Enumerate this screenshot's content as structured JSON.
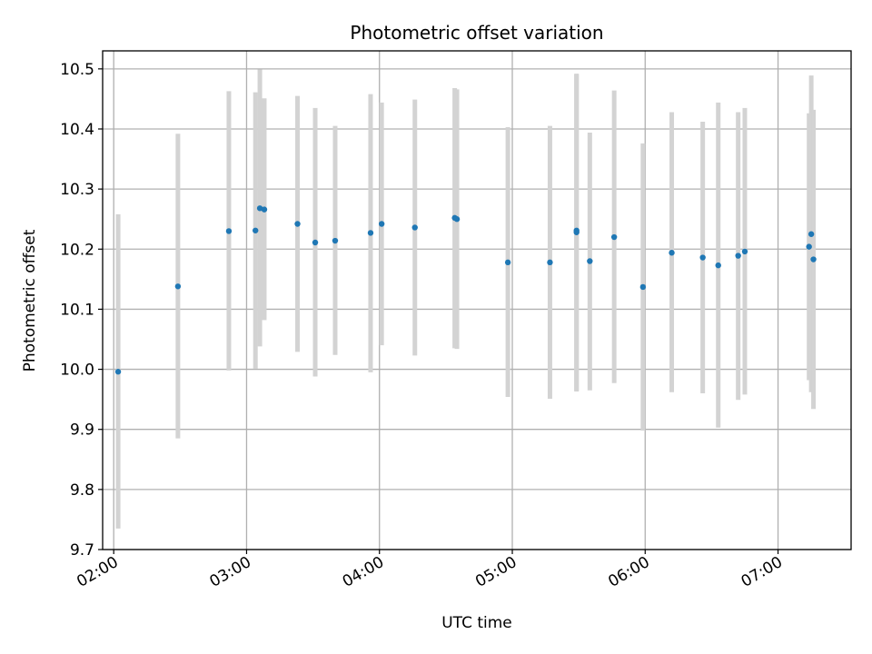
{
  "chart_data": {
    "type": "scatter",
    "title": "Photometric offset variation",
    "xlabel": "UTC time",
    "ylabel": "Photometric offset",
    "xlim": [
      "01:55",
      "07:33"
    ],
    "ylim": [
      9.7,
      10.53
    ],
    "x_ticks": [
      "02:00",
      "03:00",
      "04:00",
      "05:00",
      "06:00",
      "07:00"
    ],
    "y_ticks": [
      9.7,
      9.8,
      9.9,
      10.0,
      10.1,
      10.2,
      10.3,
      10.4,
      10.5
    ],
    "y_tick_labels": [
      "9.7",
      "9.8",
      "9.9",
      "10.0",
      "10.1",
      "10.2",
      "10.3",
      "10.4",
      "10.5"
    ],
    "grid": true,
    "point_color": "#1f77b4",
    "errorbar_color": "#d3d3d3",
    "points": [
      {
        "x": "02:02",
        "y": 9.996,
        "ylow": 9.735,
        "yhigh": 10.258
      },
      {
        "x": "02:29",
        "y": 10.138,
        "ylow": 9.885,
        "yhigh": 10.392
      },
      {
        "x": "02:52",
        "y": 10.23,
        "ylow": 9.998,
        "yhigh": 10.463
      },
      {
        "x": "03:04",
        "y": 10.231,
        "ylow": 10.001,
        "yhigh": 10.461
      },
      {
        "x": "03:06",
        "y": 10.268,
        "ylow": 10.038,
        "yhigh": 10.499
      },
      {
        "x": "03:08",
        "y": 10.266,
        "ylow": 10.082,
        "yhigh": 10.451
      },
      {
        "x": "03:23",
        "y": 10.242,
        "ylow": 10.029,
        "yhigh": 10.455
      },
      {
        "x": "03:31",
        "y": 10.211,
        "ylow": 9.988,
        "yhigh": 10.435
      },
      {
        "x": "03:40",
        "y": 10.214,
        "ylow": 10.024,
        "yhigh": 10.405
      },
      {
        "x": "03:56",
        "y": 10.227,
        "ylow": 9.995,
        "yhigh": 10.458
      },
      {
        "x": "04:01",
        "y": 10.242,
        "ylow": 10.04,
        "yhigh": 10.444
      },
      {
        "x": "04:16",
        "y": 10.236,
        "ylow": 10.023,
        "yhigh": 10.449
      },
      {
        "x": "04:34",
        "y": 10.252,
        "ylow": 10.035,
        "yhigh": 10.468
      },
      {
        "x": "04:35",
        "y": 10.25,
        "ylow": 10.034,
        "yhigh": 10.466
      },
      {
        "x": "04:58",
        "y": 10.178,
        "ylow": 9.954,
        "yhigh": 10.403
      },
      {
        "x": "05:17",
        "y": 10.178,
        "ylow": 9.951,
        "yhigh": 10.405
      },
      {
        "x": "05:29",
        "y": 10.231,
        "ylow": 9.963,
        "yhigh": 10.492
      },
      {
        "x": "05:29",
        "y": 10.228,
        "ylow": 9.964,
        "yhigh": 10.491
      },
      {
        "x": "05:35",
        "y": 10.18,
        "ylow": 9.965,
        "yhigh": 10.394
      },
      {
        "x": "05:46",
        "y": 10.22,
        "ylow": 9.977,
        "yhigh": 10.464
      },
      {
        "x": "05:59",
        "y": 10.137,
        "ylow": 9.898,
        "yhigh": 10.376
      },
      {
        "x": "06:12",
        "y": 10.194,
        "ylow": 9.962,
        "yhigh": 10.428
      },
      {
        "x": "06:26",
        "y": 10.186,
        "ylow": 9.96,
        "yhigh": 10.412
      },
      {
        "x": "06:33",
        "y": 10.173,
        "ylow": 9.903,
        "yhigh": 10.444
      },
      {
        "x": "06:42",
        "y": 10.189,
        "ylow": 9.949,
        "yhigh": 10.428
      },
      {
        "x": "06:45",
        "y": 10.196,
        "ylow": 9.958,
        "yhigh": 10.435
      },
      {
        "x": "07:14",
        "y": 10.204,
        "ylow": 9.982,
        "yhigh": 10.426
      },
      {
        "x": "07:15",
        "y": 10.225,
        "ylow": 9.962,
        "yhigh": 10.489
      },
      {
        "x": "07:16",
        "y": 10.183,
        "ylow": 9.934,
        "yhigh": 10.432
      }
    ]
  }
}
